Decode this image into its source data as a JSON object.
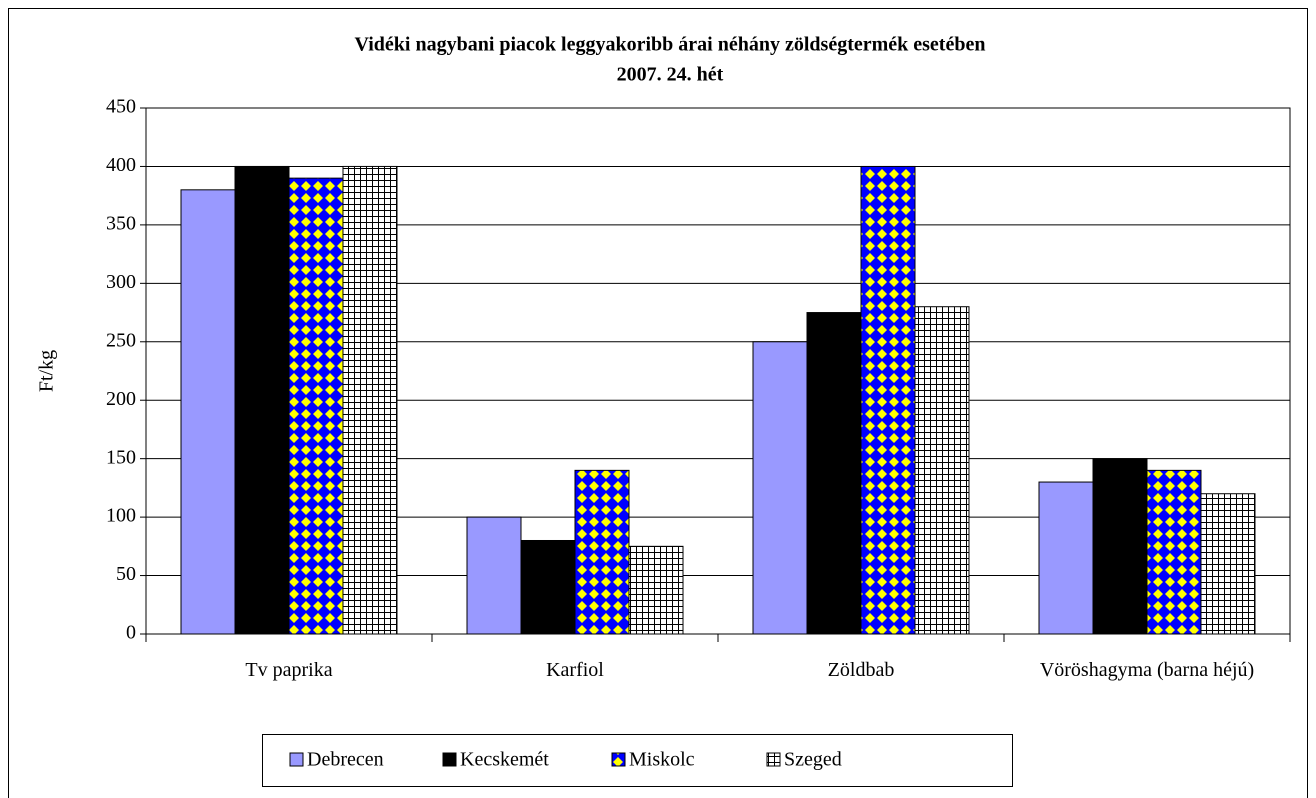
{
  "chart_data": {
    "type": "bar",
    "title": "Vidéki nagybani piacok leggyakoribb árai néhány zöldségtermék esetében",
    "subtitle": "2007. 24. hét",
    "y_label": "Ft/kg",
    "categories": [
      "Tv paprika",
      "Karfiol",
      "Zöldbab",
      "Vöröshagyma (barna héjú)"
    ],
    "series": [
      {
        "name": "Debrecen",
        "color": "#9999ff",
        "values": [
          380,
          100,
          250,
          130
        ]
      },
      {
        "name": "Kecskemét",
        "color": "#000000",
        "values": [
          400,
          80,
          275,
          150
        ]
      },
      {
        "name": "Miskolc",
        "color": "#0000ff",
        "pattern": "diamond",
        "pattern_color": "#ffff00",
        "values": [
          390,
          140,
          400,
          140
        ]
      },
      {
        "name": "Szeged",
        "color": "#ffffff",
        "pattern": "grid",
        "pattern_color": "#000000",
        "values": [
          400,
          75,
          280,
          120
        ]
      }
    ],
    "ylim": [
      0,
      450
    ],
    "yticks": [
      0,
      50,
      100,
      150,
      200,
      250,
      300,
      350,
      400,
      450
    ],
    "grid": true,
    "legend": "bottom"
  }
}
